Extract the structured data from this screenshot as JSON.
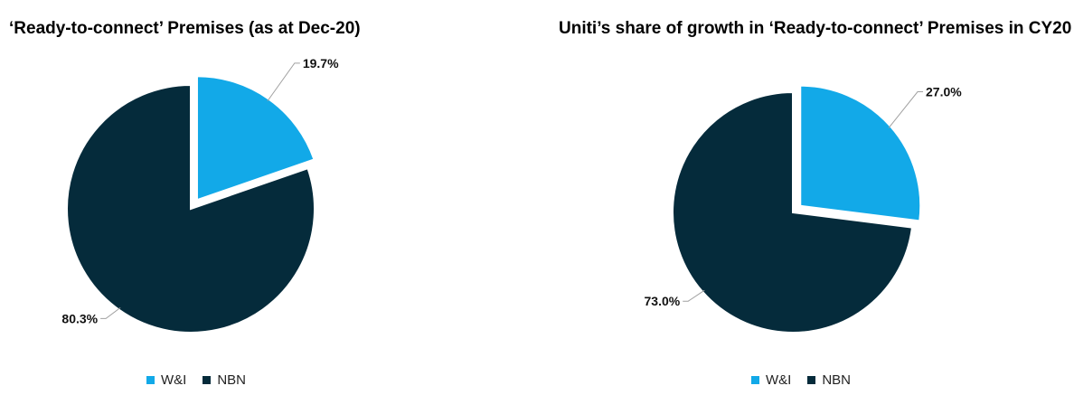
{
  "chart_data": [
    {
      "type": "pie",
      "title": "‘Ready-to-connect’ Premises (as at Dec-20)",
      "labels": [
        "W&I",
        "NBN"
      ],
      "values": [
        19.7,
        80.3
      ],
      "data_labels": [
        "19.7%",
        "80.3%"
      ],
      "colors": [
        "#12a9e8",
        "#052b3b"
      ],
      "exploded": [
        true,
        false
      ],
      "legend_position": "bottom"
    },
    {
      "type": "pie",
      "title": "Uniti’s share of growth in ‘Ready-to-connect’ Premises in CY20",
      "labels": [
        "W&I",
        "NBN"
      ],
      "values": [
        27.0,
        73.0
      ],
      "data_labels": [
        "27.0%",
        "73.0%"
      ],
      "colors": [
        "#12a9e8",
        "#052b3b"
      ],
      "exploded": [
        true,
        false
      ],
      "legend_position": "bottom"
    }
  ]
}
